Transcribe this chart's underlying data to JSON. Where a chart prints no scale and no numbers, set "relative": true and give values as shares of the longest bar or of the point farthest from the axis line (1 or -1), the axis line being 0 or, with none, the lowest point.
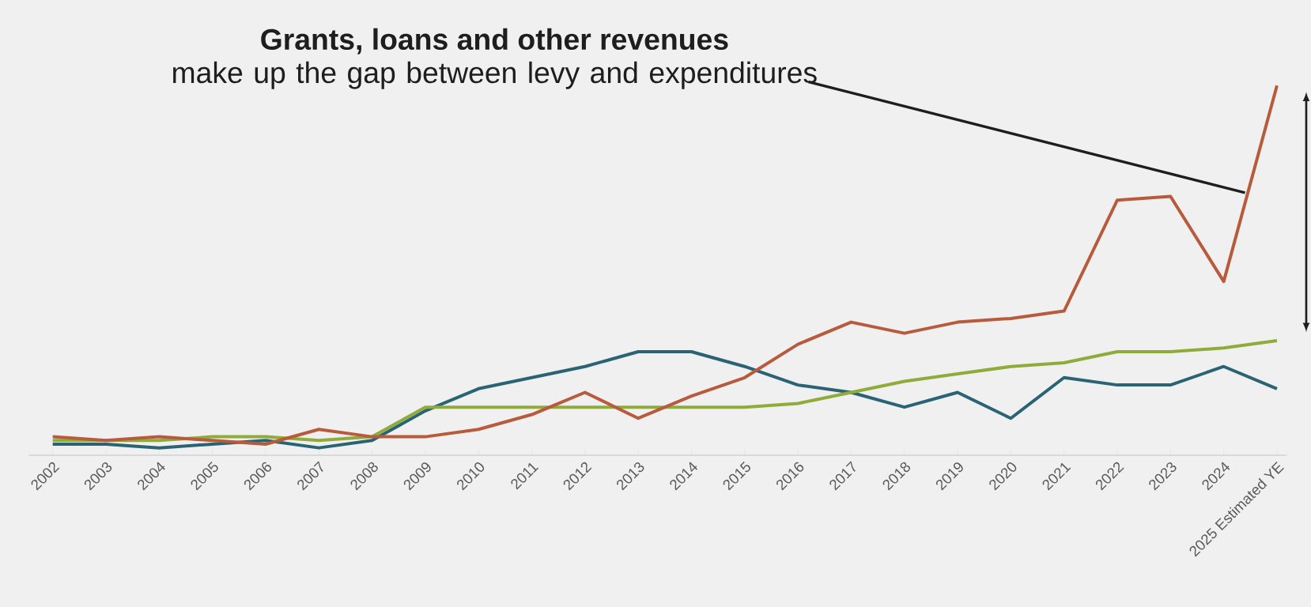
{
  "chart_data": {
    "type": "line",
    "relative": true,
    "categories": [
      "2002",
      "2003",
      "2004",
      "2005",
      "2006",
      "2007",
      "2008",
      "2009",
      "2010",
      "2011",
      "2012",
      "2013",
      "2014",
      "2015",
      "2016",
      "2017",
      "2018",
      "2019",
      "2020",
      "2021",
      "2022",
      "2023",
      "2024",
      "2025 Estimated YE"
    ],
    "series": [
      {
        "color": "#2a6474",
        "values": [
          0.03,
          0.03,
          0.02,
          0.03,
          0.04,
          0.02,
          0.04,
          0.12,
          0.18,
          0.21,
          0.24,
          0.28,
          0.28,
          0.24,
          0.19,
          0.17,
          0.13,
          0.17,
          0.1,
          0.21,
          0.19,
          0.19,
          0.24,
          0.18
        ]
      },
      {
        "color": "#8fac3a",
        "values": [
          0.04,
          0.04,
          0.04,
          0.05,
          0.05,
          0.04,
          0.05,
          0.13,
          0.13,
          0.13,
          0.13,
          0.13,
          0.13,
          0.13,
          0.14,
          0.17,
          0.2,
          0.22,
          0.24,
          0.25,
          0.28,
          0.28,
          0.29,
          0.31
        ]
      },
      {
        "color": "#b85a3c",
        "values": [
          0.05,
          0.04,
          0.05,
          0.04,
          0.03,
          0.07,
          0.05,
          0.05,
          0.07,
          0.11,
          0.17,
          0.1,
          0.16,
          0.21,
          0.3,
          0.36,
          0.33,
          0.36,
          0.37,
          0.39,
          0.69,
          0.7,
          0.47,
          1
        ]
      }
    ],
    "annotations": [
      "Grants, loans and other revenues",
      "make up the gap between levy and expenditures"
    ]
  }
}
